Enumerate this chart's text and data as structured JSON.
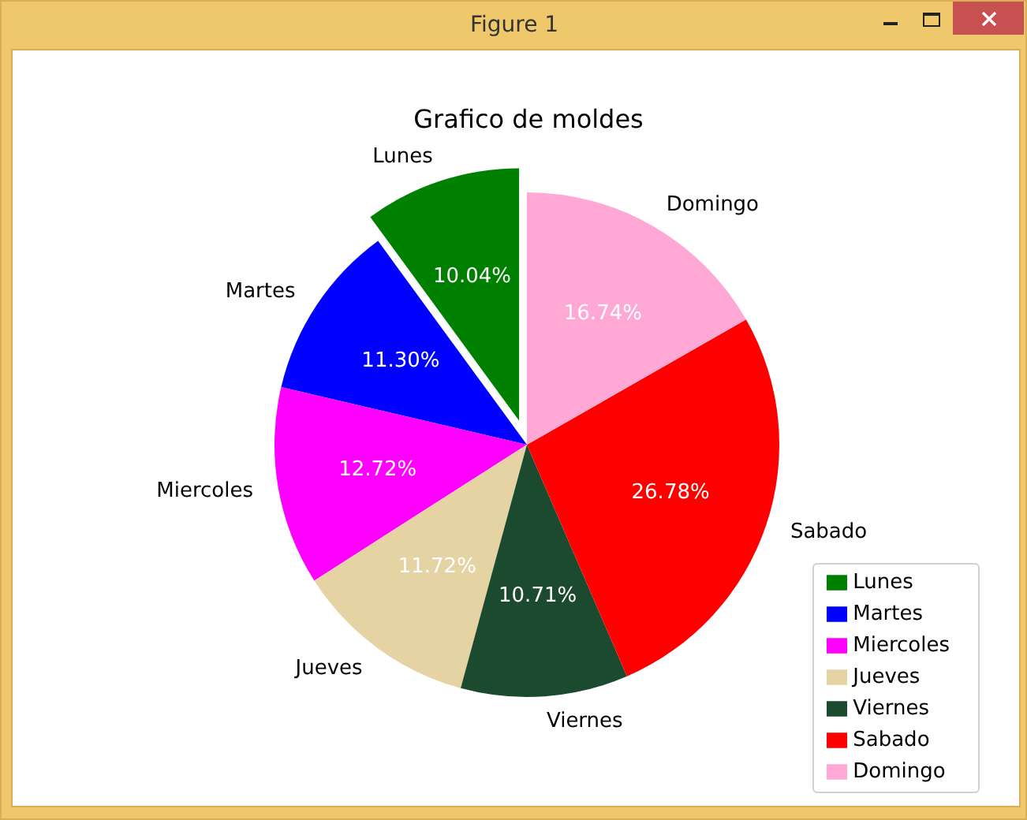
{
  "chart_data": {
    "type": "pie",
    "title": "Grafico de moldes",
    "annotations": [
      "Figure 1"
    ],
    "categories": [
      "Lunes",
      "Martes",
      "Miercoles",
      "Jueves",
      "Viernes",
      "Sabado",
      "Domingo"
    ],
    "values": [
      10.04,
      11.3,
      12.72,
      11.72,
      10.71,
      26.78,
      16.74
    ],
    "colors": [
      "#008000",
      "#0000ff",
      "#ff00ff",
      "#e5d3a3",
      "#1b4a2e",
      "#ff0000",
      "#ffa8d6"
    ],
    "value_labels": [
      "10.04%",
      "11.30%",
      "12.72%",
      "11.72%",
      "10.71%",
      "26.78%",
      "16.74%"
    ],
    "legend": "bottom right"
  }
}
